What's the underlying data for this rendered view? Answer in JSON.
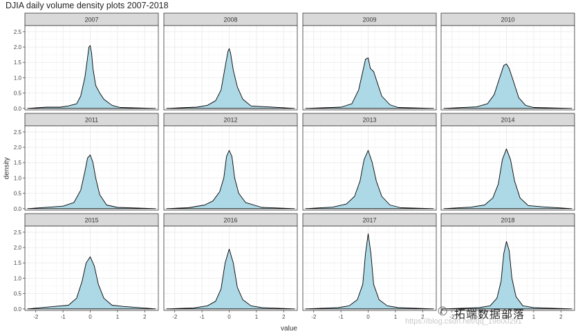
{
  "title": "DJIA daily volume density plots 2007-2018",
  "xlabel": "value",
  "ylabel": "density",
  "watermark": {
    "brand": "拓端数据部落",
    "url": "https://blog.csdn.net/qq_19600291",
    "icon": "wechat-icon"
  },
  "colors": {
    "fill": "#add8e6",
    "line": "#000000",
    "strip": "#d9d9d9",
    "grid": "#ebebeb"
  },
  "chart_data": {
    "type": "area",
    "facet_layout": "3 rows x 4 columns",
    "x_ticks": [
      -2,
      -1,
      0,
      1,
      2
    ],
    "y_ticks": [
      0.0,
      0.5,
      1.0,
      1.5,
      2.0,
      2.5
    ],
    "y_tick_labels": [
      "0.0",
      "0.5",
      "1.0",
      "1.5",
      "2.0",
      "2.5"
    ],
    "xlim": [
      -2.4,
      2.5
    ],
    "ylim": [
      -0.05,
      2.7
    ],
    "grid": true,
    "panels": [
      {
        "label": "2007",
        "peak": 2.05,
        "sd": 0.17,
        "range": [
          -2.3,
          2.4
        ],
        "x": [
          -1.6,
          -1.1,
          -0.8,
          -0.5,
          -0.35,
          -0.2,
          -0.1,
          -0.05,
          0,
          0.05,
          0.1,
          0.2,
          0.35,
          0.5,
          0.8,
          1.1
        ],
        "y": [
          0.04,
          0.04,
          0.08,
          0.15,
          0.4,
          1.0,
          1.65,
          2.0,
          2.05,
          1.8,
          1.3,
          0.75,
          0.5,
          0.3,
          0.1,
          0.03
        ]
      },
      {
        "label": "2008",
        "peak": 1.95,
        "sd": 0.18,
        "range": [
          -2.3,
          2.4
        ],
        "x": [
          -1.2,
          -0.8,
          -0.5,
          -0.3,
          -0.15,
          -0.05,
          0,
          0.05,
          0.15,
          0.3,
          0.5,
          0.8
        ],
        "y": [
          0.04,
          0.1,
          0.25,
          0.6,
          1.35,
          1.85,
          1.95,
          1.8,
          1.25,
          0.7,
          0.3,
          0.08
        ]
      },
      {
        "label": "2009",
        "peak": 1.65,
        "sd": 0.2,
        "range": [
          -2.3,
          2.4
        ],
        "x": [
          -1.0,
          -0.6,
          -0.35,
          -0.2,
          -0.1,
          0,
          0.08,
          0.2,
          0.35,
          0.5,
          0.8,
          1.1
        ],
        "y": [
          0.04,
          0.15,
          0.6,
          1.2,
          1.6,
          1.65,
          1.3,
          1.2,
          0.8,
          0.4,
          0.12,
          0.03
        ]
      },
      {
        "label": "2010",
        "peak": 1.45,
        "sd": 0.24,
        "range": [
          -2.3,
          2.4
        ],
        "x": [
          -1.1,
          -0.7,
          -0.45,
          -0.25,
          -0.1,
          0,
          0.1,
          0.25,
          0.45,
          0.7,
          1.0
        ],
        "y": [
          0.05,
          0.15,
          0.45,
          1.0,
          1.4,
          1.45,
          1.3,
          0.9,
          0.35,
          0.1,
          0.03
        ]
      },
      {
        "label": "2011",
        "peak": 1.75,
        "sd": 0.21,
        "range": [
          -2.3,
          2.4
        ],
        "x": [
          -1.0,
          -0.6,
          -0.35,
          -0.2,
          -0.1,
          0,
          0.1,
          0.2,
          0.35,
          0.6,
          1.0
        ],
        "y": [
          0.08,
          0.2,
          0.6,
          1.2,
          1.65,
          1.75,
          1.5,
          1.0,
          0.45,
          0.12,
          0.04
        ]
      },
      {
        "label": "2012",
        "peak": 1.9,
        "sd": 0.2,
        "range": [
          -2.3,
          2.4
        ],
        "x": [
          -1.5,
          -0.9,
          -0.6,
          -0.35,
          -0.2,
          -0.1,
          0,
          0.1,
          0.2,
          0.35,
          0.6,
          1.2
        ],
        "y": [
          0.03,
          0.12,
          0.25,
          0.55,
          1.0,
          1.7,
          1.9,
          1.7,
          1.0,
          0.5,
          0.2,
          0.04
        ]
      },
      {
        "label": "2013",
        "peak": 1.9,
        "sd": 0.2,
        "range": [
          -2.3,
          2.4
        ],
        "x": [
          -1.3,
          -0.8,
          -0.5,
          -0.3,
          -0.15,
          0,
          0.15,
          0.3,
          0.5,
          0.8,
          1.2
        ],
        "y": [
          0.05,
          0.15,
          0.4,
          0.9,
          1.6,
          1.9,
          1.5,
          0.9,
          0.4,
          0.12,
          0.03
        ]
      },
      {
        "label": "2014",
        "peak": 1.95,
        "sd": 0.18,
        "range": [
          -2.3,
          2.4
        ],
        "x": [
          -1.3,
          -0.8,
          -0.5,
          -0.3,
          -0.15,
          0,
          0.15,
          0.3,
          0.5,
          0.8,
          1.3
        ],
        "y": [
          0.05,
          0.12,
          0.35,
          0.8,
          1.6,
          1.95,
          1.6,
          0.9,
          0.35,
          0.1,
          0.06
        ]
      },
      {
        "label": "2015",
        "peak": 1.7,
        "sd": 0.2,
        "range": [
          -2.3,
          2.4
        ],
        "x": [
          -1.3,
          -0.8,
          -0.5,
          -0.3,
          -0.15,
          0,
          0.15,
          0.3,
          0.5,
          0.8,
          1.2
        ],
        "y": [
          0.08,
          0.12,
          0.35,
          0.9,
          1.5,
          1.7,
          1.4,
          0.8,
          0.35,
          0.12,
          0.08
        ]
      },
      {
        "label": "2016",
        "peak": 1.95,
        "sd": 0.17,
        "range": [
          -2.3,
          2.4
        ],
        "x": [
          -1.3,
          -0.8,
          -0.5,
          -0.3,
          -0.15,
          0,
          0.15,
          0.3,
          0.5,
          0.8,
          1.2
        ],
        "y": [
          0.03,
          0.1,
          0.25,
          0.65,
          1.5,
          1.95,
          1.5,
          0.7,
          0.3,
          0.1,
          0.04
        ]
      },
      {
        "label": "2017",
        "peak": 2.45,
        "sd": 0.13,
        "range": [
          -2.3,
          2.4
        ],
        "x": [
          -1.1,
          -0.7,
          -0.4,
          -0.2,
          -0.1,
          0,
          0.1,
          0.2,
          0.4,
          0.7,
          1.1
        ],
        "y": [
          0.04,
          0.1,
          0.3,
          0.8,
          1.8,
          2.45,
          1.8,
          0.8,
          0.3,
          0.1,
          0.04
        ]
      },
      {
        "label": "2018",
        "peak": 2.2,
        "sd": 0.14,
        "range": [
          -2.3,
          2.4
        ],
        "x": [
          -1.0,
          -0.6,
          -0.35,
          -0.2,
          -0.1,
          0,
          0.1,
          0.2,
          0.35,
          0.6,
          1.0
        ],
        "y": [
          0.04,
          0.1,
          0.35,
          0.9,
          1.8,
          2.2,
          1.9,
          1.0,
          0.4,
          0.1,
          0.04
        ]
      }
    ]
  }
}
